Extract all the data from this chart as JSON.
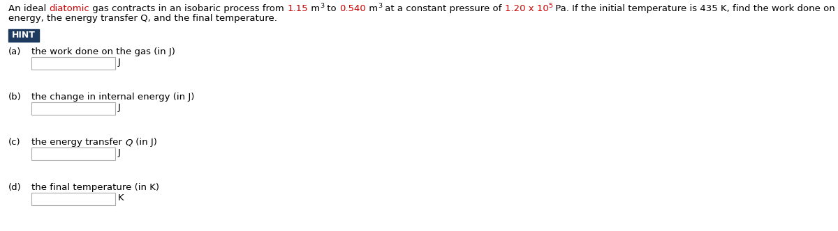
{
  "background_color": "#ffffff",
  "hint_box_color": "#1e3a5f",
  "hint_text": "HINT",
  "hint_text_color": "#ffffff",
  "items": [
    {
      "label": "(a)",
      "desc": "the work done on the gas (in J)",
      "unit": "J"
    },
    {
      "label": "(b)",
      "desc": "the change in internal energy (in J)",
      "unit": "J"
    },
    {
      "label": "(c)",
      "desc": "the energy transfer Q (in J)",
      "unit": "J"
    },
    {
      "label": "(d)",
      "desc": "the final temperature (in K)",
      "unit": "K"
    }
  ],
  "font_size": 9.5,
  "fig_width": 12.0,
  "fig_height": 3.32,
  "dpi": 100
}
